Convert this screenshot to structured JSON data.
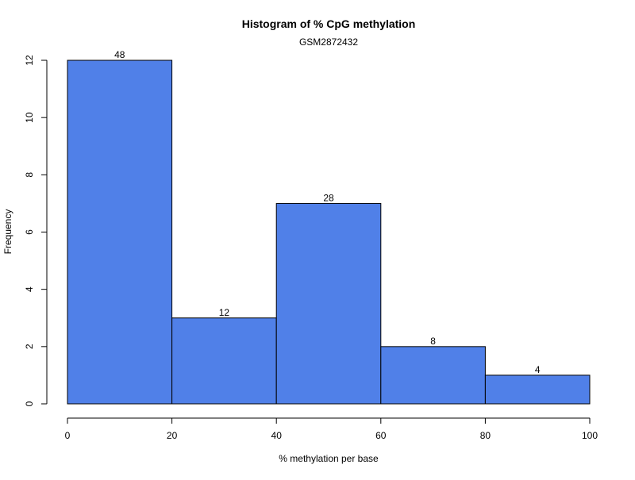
{
  "chart_data": {
    "type": "bar",
    "title": "Histogram of % CpG methylation",
    "subtitle": "GSM2872432",
    "xlabel": "% methylation per base",
    "ylabel": "Frequency",
    "bins": [
      {
        "x0": 0,
        "x1": 20,
        "count": 12,
        "label": "48"
      },
      {
        "x0": 20,
        "x1": 40,
        "count": 3,
        "label": "12"
      },
      {
        "x0": 40,
        "x1": 60,
        "count": 7,
        "label": "28"
      },
      {
        "x0": 60,
        "x1": 80,
        "count": 2,
        "label": "8"
      },
      {
        "x0": 80,
        "x1": 100,
        "count": 1,
        "label": "4"
      }
    ],
    "x_ticks": [
      "0",
      "20",
      "40",
      "60",
      "80",
      "100"
    ],
    "y_ticks": [
      "0",
      "2",
      "4",
      "6",
      "8",
      "10",
      "12"
    ],
    "xlim": [
      0,
      100
    ],
    "ylim": [
      0,
      12
    ],
    "grid": false,
    "bar_color": "#5080E8",
    "bar_edge_color": "#000000"
  }
}
